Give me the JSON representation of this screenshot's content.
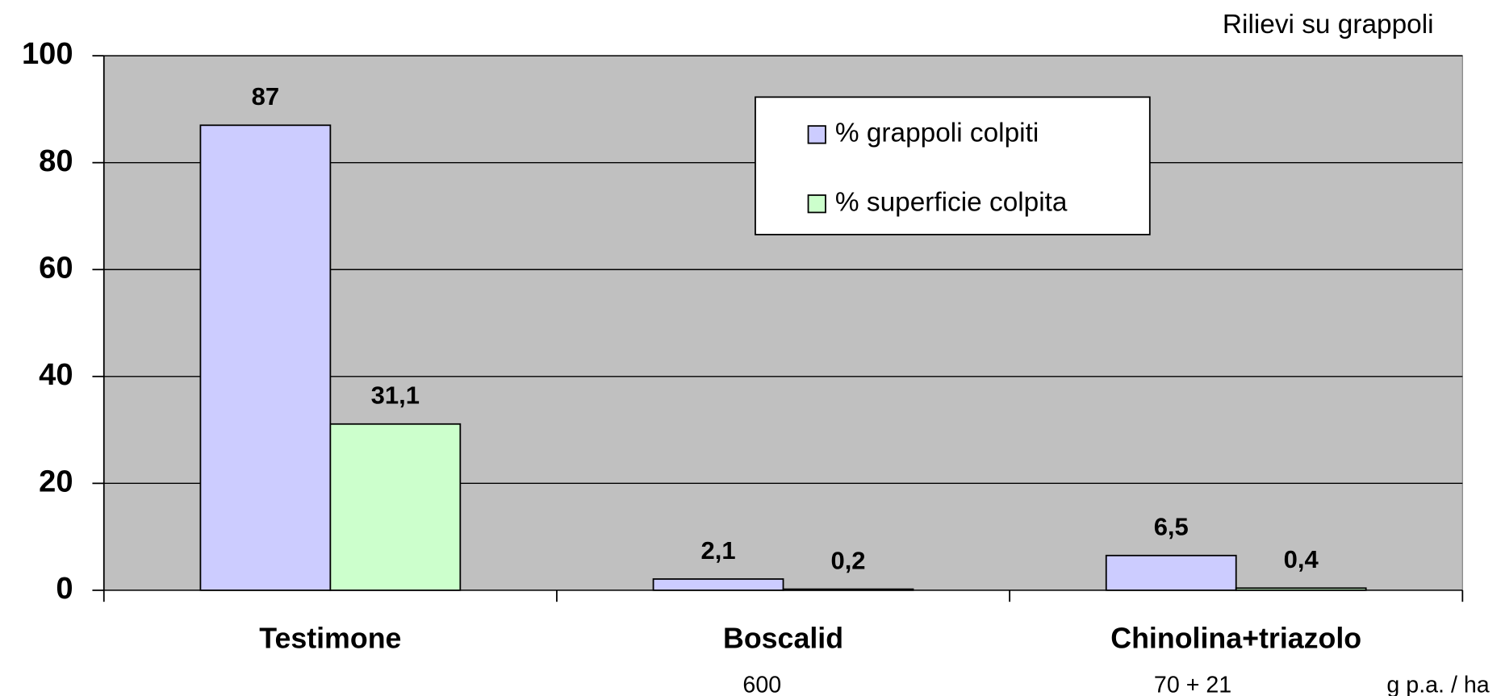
{
  "chart_data": {
    "type": "bar",
    "title": "Rilievi su grappoli",
    "categories": [
      "Testimone",
      "Boscalid",
      "Chinolina+triazolo"
    ],
    "doses": [
      null,
      "600",
      "70 + 21"
    ],
    "dose_unit": "g p.a. / ha",
    "series": [
      {
        "name": "% grappoli colpiti",
        "color": "#ccccff",
        "values": [
          87,
          2.1,
          6.5
        ],
        "value_labels": [
          "87",
          "2,1",
          "6,5"
        ]
      },
      {
        "name": "% superficie colpita",
        "color": "#ccffcc",
        "values": [
          31.1,
          0.2,
          0.4
        ],
        "value_labels": [
          "31,1",
          "0,2",
          "0,4"
        ]
      }
    ],
    "ylim": [
      0,
      100
    ],
    "yticks": [
      0,
      20,
      40,
      60,
      80,
      100
    ],
    "grid": true,
    "plot_background": "#c0c0c0"
  }
}
